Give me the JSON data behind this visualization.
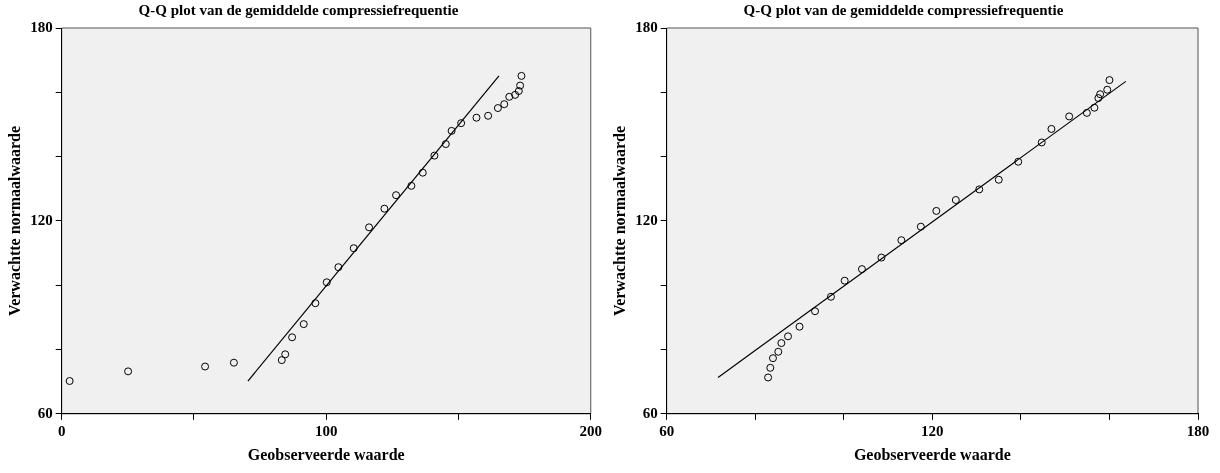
{
  "chart_data": [
    {
      "type": "scatter",
      "title": "Q-Q plot van de gemiddelde compressiefrequentie",
      "xlabel": "Geobserveerde waarde",
      "ylabel": "Verwachtte normaalwaarde",
      "xlim": [
        0,
        200
      ],
      "xticks": [
        0,
        {
          "value": 50,
          "label": null
        },
        100,
        {
          "value": 150,
          "label": null
        },
        200
      ],
      "ylim": [
        60,
        180
      ],
      "yticks": [
        60,
        {
          "value": 80,
          "label": null
        },
        {
          "value": 100,
          "label": null
        },
        120,
        {
          "value": 140,
          "label": null
        },
        {
          "value": 160,
          "label": null
        },
        180
      ],
      "grid": false,
      "legend": false,
      "series": [
        {
          "marker": "circle",
          "color": "#000000",
          "x": [
            3.0,
            25.1,
            54.2,
            65.1,
            83.2,
            84.5,
            87.1,
            91.5,
            95.9,
            100.2,
            104.6,
            110.4,
            116.2,
            122.0,
            126.4,
            132.2,
            136.5,
            140.9,
            145.2,
            147.4,
            151.0,
            156.8,
            161.2,
            164.9,
            167.3,
            169.2,
            171.4,
            172.8,
            173.3,
            173.8
          ],
          "values": [
            70.2,
            73.2,
            74.7,
            75.9,
            76.7,
            78.5,
            83.8,
            87.9,
            94.4,
            100.9,
            105.6,
            111.5,
            118.0,
            123.8,
            128.0,
            130.9,
            135.0,
            140.3,
            143.9,
            148.0,
            150.4,
            152.1,
            152.7,
            155.1,
            156.3,
            158.6,
            159.2,
            160.4,
            162.1,
            165.1
          ]
        },
        {
          "type": "line",
          "marker": "none",
          "color": "#000000",
          "x": [
            70.4,
            165.3
          ],
          "values": [
            70.2,
            165.1
          ]
        }
      ]
    },
    {
      "type": "scatter",
      "title": "Q-Q plot van de gemiddelde compressiefrequentie",
      "xlabel": "Geobserveerde waarde",
      "ylabel": "Verwachtte normaalwaarde",
      "xlim": [
        60,
        180
      ],
      "xticks": [
        60,
        {
          "value": 80,
          "label": null
        },
        {
          "value": 100,
          "label": null
        },
        120,
        {
          "value": 140,
          "label": null
        },
        {
          "value": 160,
          "label": null
        },
        180
      ],
      "ylim": [
        60,
        180
      ],
      "yticks": [
        60,
        {
          "value": 80,
          "label": null
        },
        {
          "value": 100,
          "label": null
        },
        120,
        {
          "value": 140,
          "label": null
        },
        {
          "value": 160,
          "label": null
        },
        180
      ],
      "grid": false,
      "legend": false,
      "series": [
        {
          "marker": "circle",
          "color": "#000000",
          "x": [
            82.9,
            83.4,
            84.0,
            85.2,
            85.9,
            87.4,
            90.0,
            93.5,
            97.1,
            100.2,
            104.1,
            108.5,
            113.0,
            117.4,
            120.9,
            125.3,
            130.6,
            135.0,
            139.4,
            144.7,
            146.9,
            150.9,
            154.9,
            156.6,
            157.5,
            157.9,
            159.5,
            160.0
          ],
          "values": [
            71.3,
            74.3,
            77.3,
            79.3,
            82.0,
            84.1,
            87.1,
            91.9,
            96.4,
            101.4,
            105.0,
            108.6,
            114.0,
            118.2,
            123.1,
            126.5,
            129.8,
            132.8,
            138.4,
            144.4,
            148.6,
            152.5,
            153.6,
            155.2,
            158.2,
            159.4,
            160.8,
            163.8
          ]
        },
        {
          "type": "line",
          "marker": "none",
          "color": "#000000",
          "x": [
            71.6,
            163.7
          ],
          "values": [
            71.3,
            163.4
          ]
        }
      ]
    }
  ]
}
